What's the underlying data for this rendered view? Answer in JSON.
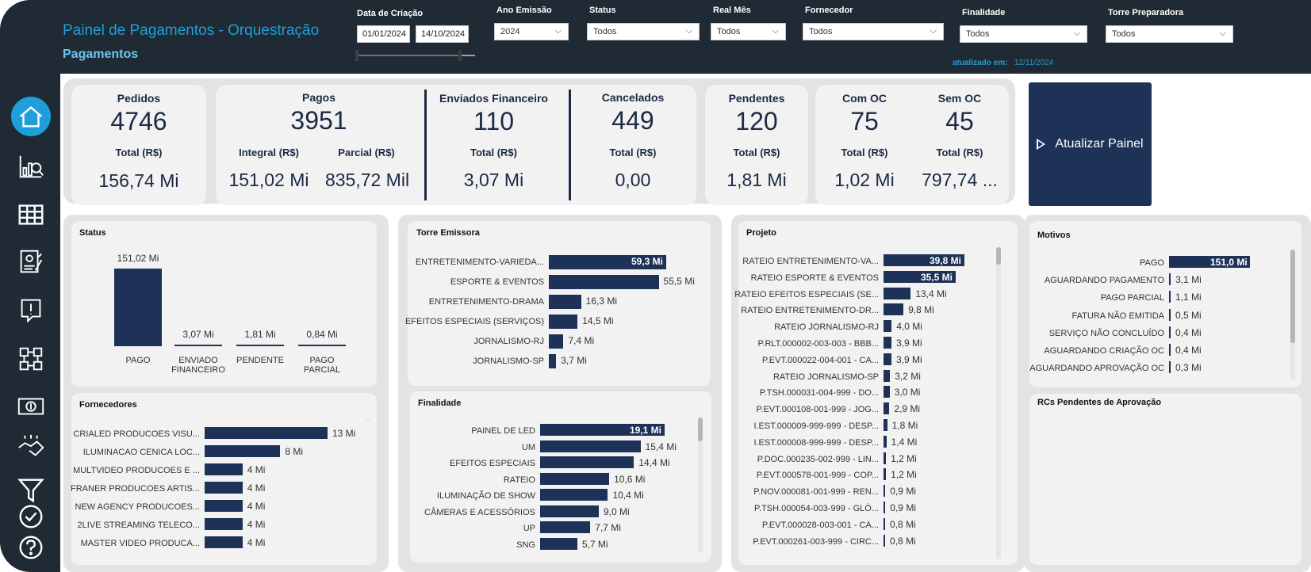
{
  "header": {
    "title": "Painel de Pagamentos - Orquestração",
    "subtitle": "Pagamentos",
    "filters": {
      "data_criacao": {
        "label": "Data de Criação",
        "start": "01/01/2024",
        "end": "14/10/2024"
      },
      "ano_emissao": {
        "label": "Ano Emissão",
        "value": "2024"
      },
      "status": {
        "label": "Status",
        "value": "Todos"
      },
      "real_mes": {
        "label": "Real Mês",
        "value": "Todos"
      },
      "fornecedor": {
        "label": "Fornecedor",
        "value": "Todos"
      },
      "finalidade": {
        "label": "Finalidade",
        "value": "Todos"
      },
      "torre_preparadora": {
        "label": "Torre Preparadora",
        "value": "Todos"
      }
    },
    "updated_label": "atualizado em:",
    "updated_value": "12/11/2024"
  },
  "sidebar": {
    "items": [
      "home-icon",
      "analytics-icon",
      "table-icon",
      "document-icon",
      "alert-icon",
      "network-icon",
      "payment-icon",
      "handshake-icon",
      "filter-icon",
      "check-icon",
      "help-icon"
    ]
  },
  "kpis": {
    "pedidos": {
      "title": "Pedidos",
      "count": "4746",
      "sub": "Total (R$)",
      "value": "156,74 Mi"
    },
    "pagos": {
      "title": "Pagos",
      "count": "3951",
      "sub1": "Integral (R$)",
      "val1": "151,02 Mi",
      "sub2": "Parcial (R$)",
      "val2": "835,72 Mil"
    },
    "enviados": {
      "title": "Enviados Financeiro",
      "count": "110",
      "sub": "Total (R$)",
      "value": "3,07 Mi"
    },
    "cancelados": {
      "title": "Cancelados",
      "count": "449",
      "sub": "Total (R$)",
      "value": "0,00"
    },
    "pendentes": {
      "title": "Pendentes",
      "count": "120",
      "sub": "Total (R$)",
      "value": "1,81 Mi"
    },
    "com_oc": {
      "title": "Com OC",
      "count": "75",
      "sub": "Total (R$)",
      "value": "1,02 Mi"
    },
    "sem_oc": {
      "title": "Sem OC",
      "count": "45",
      "sub": "Total (R$)",
      "value": "797,74 ..."
    }
  },
  "refresh_label": "Atualizar Painel",
  "panels": {
    "status": "Status",
    "fornecedores": "Fornecedores",
    "torre": "Torre Emissora",
    "finalidade": "Finalidade",
    "projeto": "Projeto",
    "motivos": "Motivos",
    "rcs": "RCs Pendentes de Aprovação"
  },
  "chart_data": [
    {
      "type": "bar",
      "id": "status",
      "title": "Status",
      "categories": [
        "PAGO",
        "ENVIADO FINANCEIRO",
        "PENDENTE",
        "PAGO PARCIAL"
      ],
      "values": [
        151.02,
        3.07,
        1.81,
        0.84
      ],
      "labels": [
        "151,02 Mi",
        "3,07 Mi",
        "1,81 Mi",
        "0,84 Mi"
      ]
    },
    {
      "type": "bar",
      "id": "fornecedores",
      "orientation": "horizontal",
      "title": "Fornecedores",
      "categories": [
        "CRIALED PRODUCOES VISU...",
        "ILUMINACAO CENICA LOC...",
        "MULTVIDEO PRODUCOES E ...",
        "FRANER PRODUCOES ARTIS...",
        "NEW AGENCY PRODUCOES...",
        "2LIVE STREAMING TELECO...",
        "MASTER VIDEO PRODUCA..."
      ],
      "values": [
        13,
        8,
        4,
        4,
        4,
        4,
        4
      ],
      "labels": [
        "13 Mi",
        "8 Mi",
        "4 Mi",
        "4 Mi",
        "4 Mi",
        "4 Mi",
        "4 Mi"
      ]
    },
    {
      "type": "bar",
      "id": "torre",
      "orientation": "horizontal",
      "title": "Torre Emissora",
      "categories": [
        "ENTRETENIMENTO-VARIEDA...",
        "ESPORTE & EVENTOS",
        "ENTRETENIMENTO-DRAMA",
        "EFEITOS ESPECIAIS (SERVIÇOS)",
        "JORNALISMO-RJ",
        "JORNALISMO-SP"
      ],
      "values": [
        59.3,
        55.5,
        16.3,
        14.5,
        7.4,
        3.7
      ],
      "labels": [
        "59,3 Mi",
        "55,5 Mi",
        "16,3 Mi",
        "14,5 Mi",
        "7,4 Mi",
        "3,7 Mi"
      ]
    },
    {
      "type": "bar",
      "id": "finalidade",
      "orientation": "horizontal",
      "title": "Finalidade",
      "categories": [
        "PAINEL DE LED",
        "UM",
        "EFEITOS ESPECIAIS",
        "RATEIO",
        "ILUMINAÇÃO DE SHOW",
        "CÂMERAS E ACESSÓRIOS",
        "UP",
        "SNG"
      ],
      "values": [
        19.1,
        15.4,
        14.4,
        10.6,
        10.4,
        9.0,
        7.7,
        5.7
      ],
      "labels": [
        "19,1 Mi",
        "15,4 Mi",
        "14,4 Mi",
        "10,6 Mi",
        "10,4 Mi",
        "9,0 Mi",
        "7,7 Mi",
        "5,7 Mi"
      ]
    },
    {
      "type": "bar",
      "id": "projeto",
      "orientation": "horizontal",
      "title": "Projeto",
      "categories": [
        "RATEIO ENTRETENIMENTO-VA...",
        "RATEIO ESPORTE & EVENTOS",
        "RATEIO EFEITOS ESPECIAIS (SE...",
        "RATEIO ENTRETENIMENTO-DR...",
        "RATEIO JORNALISMO-RJ",
        "P.RLT.000002-003-003 - BBB...",
        "P.EVT.000022-004-001 - CA...",
        "RATEIO JORNALISMO-SP",
        "P.TSH.000031-004-999 - DO...",
        "P.EVT.000108-001-999 - JOG...",
        "I.EST.000009-999-999 - DESP...",
        "I.EST.000008-999-999 - DESP...",
        "P.DOC.000235-002-999 - LIN...",
        "P.EVT.000578-001-999 - COP...",
        "P.NOV.000081-001-999 - REN...",
        "P.TSH.000054-003-999 - GLÓ...",
        "P.EVT.000028-003-001 - CA...",
        "P.EVT.000261-003-999 - CIRC..."
      ],
      "values": [
        39.8,
        35.5,
        13.4,
        9.8,
        4.0,
        3.9,
        3.9,
        3.2,
        3.0,
        2.9,
        1.8,
        1.4,
        1.2,
        1.2,
        0.9,
        0.9,
        0.8,
        0.8
      ],
      "labels": [
        "39,8 Mi",
        "35,5 Mi",
        "13,4 Mi",
        "9,8 Mi",
        "4,0 Mi",
        "3,9 Mi",
        "3,9 Mi",
        "3,2 Mi",
        "3,0 Mi",
        "2,9 Mi",
        "1,8 Mi",
        "1,4 Mi",
        "1,2 Mi",
        "1,2 Mi",
        "0,9 Mi",
        "0,9 Mi",
        "0,8 Mi",
        "0,8 Mi"
      ]
    },
    {
      "type": "bar",
      "id": "motivos",
      "orientation": "horizontal",
      "title": "Motivos",
      "categories": [
        "PAGO",
        "AGUARDANDO PAGAMENTO",
        "PAGO PARCIAL",
        "FATURA NÃO EMITIDA",
        "SERVIÇO NÃO CONCLUÍDO",
        "AGUARDANDO CRIAÇÃO OC",
        "AGUARDANDO APROVAÇÃO OC"
      ],
      "values": [
        151.0,
        3.1,
        1.1,
        0.5,
        0.4,
        0.4,
        0.3
      ],
      "labels": [
        "151,0 Mi",
        "3,1 Mi",
        "1,1 Mi",
        "0,5 Mi",
        "0,4 Mi",
        "0,4 Mi",
        "0,3 Mi"
      ]
    }
  ]
}
